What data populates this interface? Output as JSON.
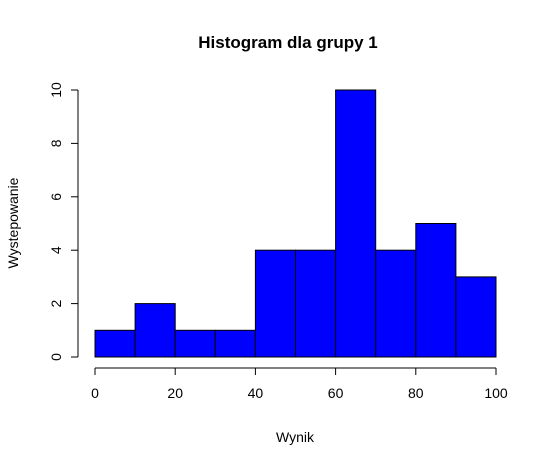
{
  "chart_data": {
    "type": "bar",
    "title": "Histogram dla grupy 1",
    "xlabel": "Wynik",
    "ylabel": "Wystepowanie",
    "bins": [
      {
        "from": 0,
        "to": 10,
        "count": 1
      },
      {
        "from": 10,
        "to": 20,
        "count": 2
      },
      {
        "from": 20,
        "to": 30,
        "count": 1
      },
      {
        "from": 30,
        "to": 40,
        "count": 1
      },
      {
        "from": 40,
        "to": 50,
        "count": 4
      },
      {
        "from": 50,
        "to": 60,
        "count": 4
      },
      {
        "from": 60,
        "to": 70,
        "count": 10
      },
      {
        "from": 70,
        "to": 80,
        "count": 4
      },
      {
        "from": 80,
        "to": 90,
        "count": 5
      },
      {
        "from": 90,
        "to": 100,
        "count": 3
      }
    ],
    "xlim": [
      0,
      100
    ],
    "ylim": [
      0,
      10
    ],
    "x_ticks": [
      "0",
      "20",
      "40",
      "60",
      "80",
      "100"
    ],
    "y_ticks": [
      "0",
      "2",
      "4",
      "6",
      "8",
      "10"
    ],
    "bar_color": "#0000ff",
    "bar_edge_color": "#000000",
    "grid": false,
    "legend": "none"
  }
}
